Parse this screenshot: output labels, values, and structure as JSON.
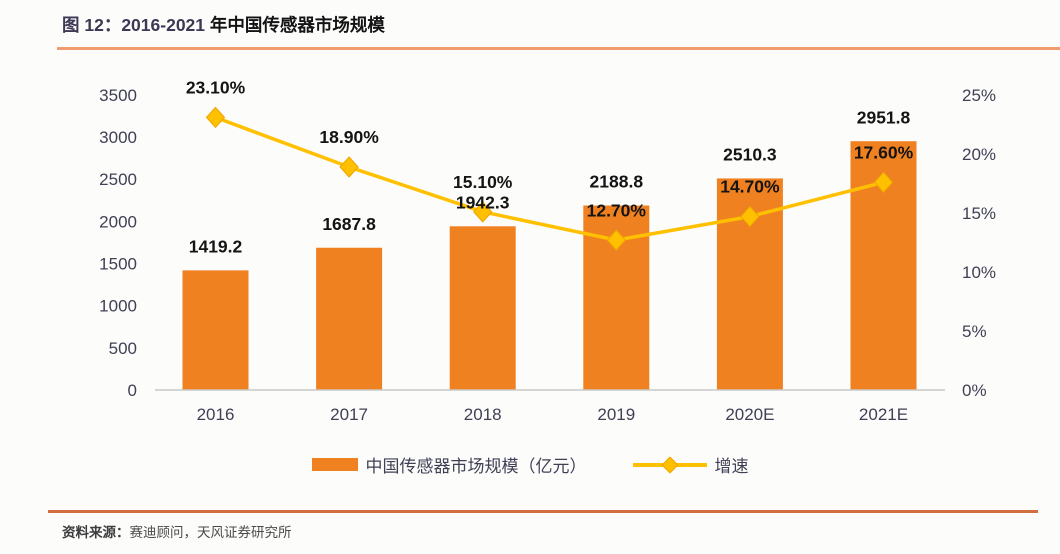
{
  "header": {
    "figure_label": "图 12：2016-2021 ",
    "figure_title": "年中国传感器市场规模"
  },
  "colors": {
    "bar": "#F08121",
    "line": "#FFC000",
    "marker_stroke": "#EDA400",
    "axis_line": "#C8C8C8",
    "tick_text": "#3F3F55",
    "data_label": "#141414",
    "rule_top": "#EE8A56",
    "rule_bottom": "#D26E3E"
  },
  "chart_data": {
    "type": "bar",
    "title": "2016-2021 年中国传感器市场规模",
    "xlabel": "",
    "ylabel": "",
    "categories": [
      "2016",
      "2017",
      "2018",
      "2019",
      "2020E",
      "2021E"
    ],
    "series": [
      {
        "name": "中国传感器市场规模（亿元）",
        "type": "bar",
        "axis": "left",
        "values": [
          1419.2,
          1687.8,
          1942.3,
          2188.8,
          2510.3,
          2951.8
        ],
        "labels": [
          "1419.2",
          "1687.8",
          "1942.3",
          "2188.8",
          "2510.3",
          "2951.8"
        ],
        "color": "#F08121"
      },
      {
        "name": "增速",
        "type": "line",
        "axis": "right",
        "values": [
          23.1,
          18.9,
          15.1,
          12.7,
          14.7,
          17.6
        ],
        "labels": [
          "23.10%",
          "18.90%",
          "15.10%",
          "12.70%",
          "14.70%",
          "17.60%"
        ],
        "color": "#FFC000"
      }
    ],
    "left_axis": {
      "min": 0,
      "max": 3500,
      "step": 500,
      "ticks": [
        "0",
        "500",
        "1000",
        "1500",
        "2000",
        "2500",
        "3000",
        "3500"
      ]
    },
    "right_axis": {
      "min": 0,
      "max": 25,
      "step": 5,
      "ticks": [
        "0%",
        "5%",
        "10%",
        "15%",
        "20%",
        "25%"
      ]
    },
    "grid": false,
    "legend_position": "bottom"
  },
  "footer": {
    "source_label": "资料来源：",
    "source_text": "赛迪顾问，天风证券研究所"
  }
}
